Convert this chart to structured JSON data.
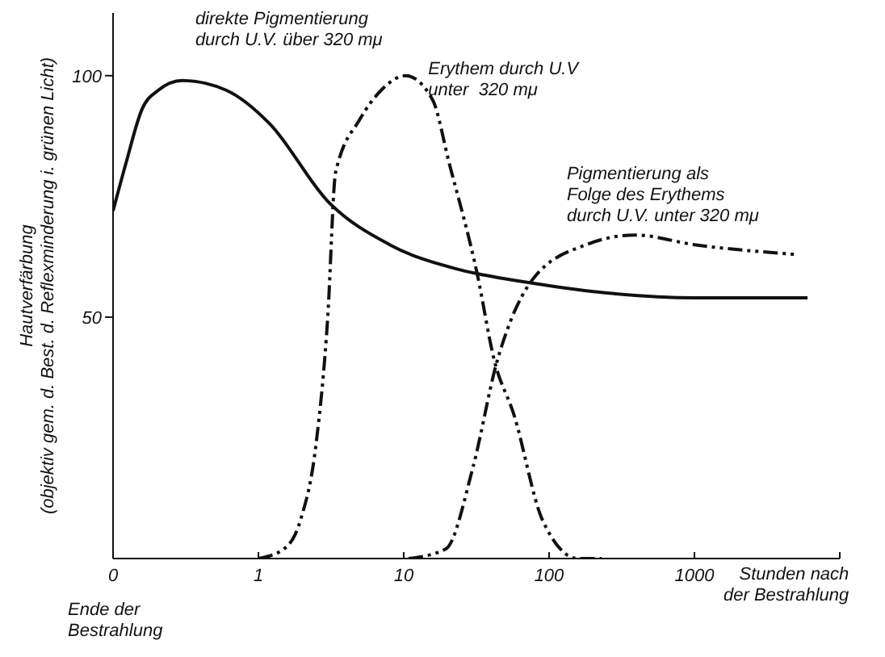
{
  "chart_data": {
    "type": "line",
    "ylabel": "Hautverfärbung\n(objektiv gem. d. Best. d. Reflexminderung i. grünen Licht)",
    "xlabel": "Stunden nach\nder Bestrahlung",
    "annotations": [
      "Ende der\nBestrahlung"
    ],
    "log": "x",
    "xlim": [
      0.1,
      10000
    ],
    "xticks": [
      {
        "value": 0.1,
        "label": "0"
      },
      1,
      10,
      100,
      1000,
      {
        "value": 10000,
        "label": null
      }
    ],
    "ylim": [
      0,
      113
    ],
    "yticks": [
      50,
      100
    ],
    "marker": "none",
    "series": [
      {
        "name": "direkte Pigmentierung\ndurch U.V. über 320 mμ",
        "color": "#111111",
        "line_style": "solid",
        "x": [
          0.1,
          0.123,
          0.158,
          0.205,
          0.3,
          0.6,
          1.2,
          3.0,
          8,
          23,
          32,
          78,
          250,
          1000,
          6000
        ],
        "values": [
          72,
          82,
          93,
          97,
          99,
          97,
          90,
          74,
          65,
          60,
          59,
          57,
          55,
          54,
          54
        ]
      },
      {
        "name": "Erythem durch U.V\nunter  320 mμ",
        "color": "#111111",
        "line_style": "dashed",
        "x": [
          1,
          1.5,
          1.95,
          2.5,
          3.0,
          3.4,
          5.0,
          7,
          10.3,
          15.8,
          20.5,
          32,
          42,
          57,
          90,
          158,
          230
        ],
        "values": [
          0,
          2,
          8,
          24,
          50,
          80,
          91,
          97,
          100,
          95,
          82,
          59,
          41,
          30,
          8,
          0,
          0
        ]
      },
      {
        "name": "Pigmentierung als\nFolge des Erythems\ndurch U.V. unter 320 mμ",
        "color": "#111111",
        "line_style": "dashed",
        "x": [
          10.8,
          19.5,
          30,
          44,
          54,
          78,
          180,
          390,
          1000,
          4900
        ],
        "values": [
          0,
          2,
          19,
          41,
          49,
          58,
          65,
          67,
          65,
          63
        ]
      }
    ]
  }
}
